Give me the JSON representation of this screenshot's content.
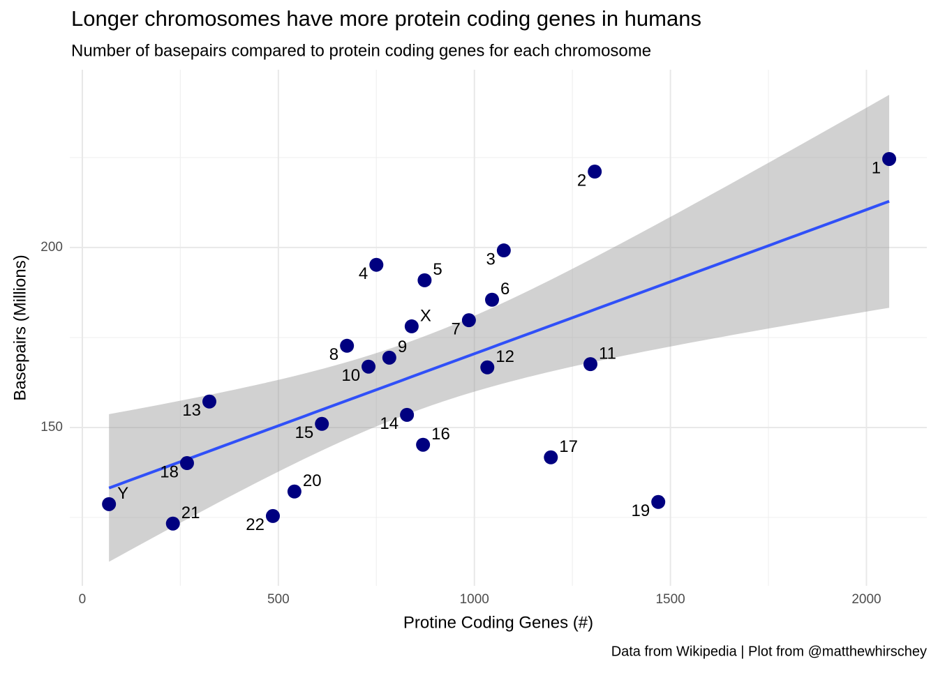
{
  "chart_data": {
    "type": "scatter",
    "title": "Longer chromosomes have more protein coding genes in humans",
    "subtitle": "Number of basepairs compared to protein coding genes for each chromosome",
    "x_label": "Protine Coding Genes (#)",
    "y_label": "Basepairs (Millions)",
    "caption": "Data from Wikipedia | Plot from @matthewhirschey",
    "labels": [
      "1",
      "2",
      "3",
      "4",
      "5",
      "6",
      "7",
      "8",
      "9",
      "10",
      "11",
      "12",
      "13",
      "14",
      "15",
      "16",
      "17",
      "18",
      "19",
      "20",
      "21",
      "22",
      "X",
      "Y"
    ],
    "x": [
      2058,
      1307,
      1075,
      750,
      873,
      1045,
      986,
      675,
      783,
      730,
      1296,
      1033,
      324,
      828,
      611,
      869,
      1195,
      267,
      1469,
      541,
      231,
      486,
      840,
      68
    ],
    "y": [
      224.6,
      221.1,
      199.2,
      195.2,
      190.9,
      185.5,
      179.8,
      172.7,
      169.4,
      166.9,
      167.6,
      166.7,
      157.2,
      153.5,
      151.0,
      145.2,
      141.7,
      140.1,
      129.3,
      132.2,
      123.3,
      125.4,
      178.1,
      128.7
    ],
    "color": "#000080",
    "fit_color": "#3050f8",
    "xlim": [
      -32,
      2154
    ],
    "ylim": [
      106,
      249.4
    ],
    "xticks": [
      0,
      500,
      1000,
      1500,
      2000
    ],
    "yticks": [
      150,
      200
    ],
    "grid": true
  }
}
